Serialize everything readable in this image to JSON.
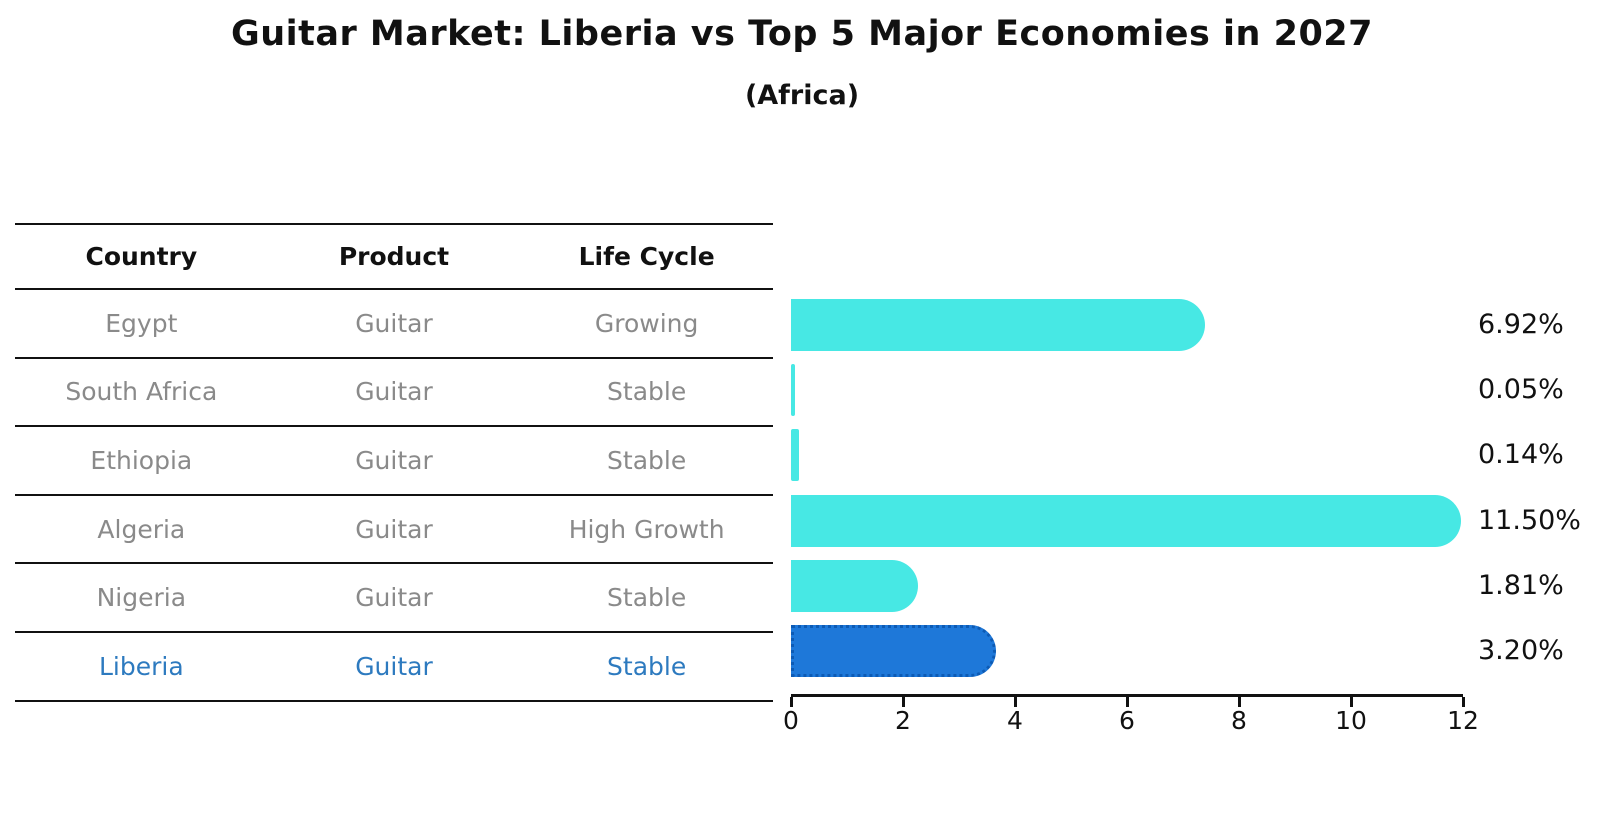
{
  "title": "Guitar Market: Liberia vs Top 5 Major Economies in 2027",
  "subtitle": "(Africa)",
  "table": {
    "headers": [
      "Country",
      "Product",
      "Life Cycle"
    ],
    "rows": [
      {
        "country": "Egypt",
        "product": "Guitar",
        "life_cycle": "Growing",
        "highlight": false
      },
      {
        "country": "South Africa",
        "product": "Guitar",
        "life_cycle": "Stable",
        "highlight": false
      },
      {
        "country": "Ethiopia",
        "product": "Guitar",
        "life_cycle": "Stable",
        "highlight": false
      },
      {
        "country": "Algeria",
        "product": "Guitar",
        "life_cycle": "High Growth",
        "highlight": false
      },
      {
        "country": "Nigeria",
        "product": "Guitar",
        "life_cycle": "Stable",
        "highlight": false
      },
      {
        "country": "Liberia",
        "product": "Guitar",
        "life_cycle": "Stable",
        "highlight": true
      }
    ]
  },
  "chart_data": {
    "type": "bar",
    "orientation": "horizontal",
    "title": "Guitar Market: Liberia vs Top 5 Major Economies in 2027",
    "subtitle": "(Africa)",
    "categories": [
      "Egypt",
      "South Africa",
      "Ethiopia",
      "Algeria",
      "Nigeria",
      "Liberia"
    ],
    "values": [
      6.92,
      0.05,
      0.14,
      11.5,
      1.81,
      3.2
    ],
    "value_labels": [
      "6.92%",
      "0.05%",
      "0.14%",
      "11.50%",
      "1.81%",
      "3.20%"
    ],
    "highlight_index": 5,
    "x_ticks": [
      0,
      2,
      4,
      6,
      8,
      10,
      12
    ],
    "xlim": [
      0,
      12
    ],
    "grid": false,
    "legend": false,
    "colors": {
      "bar_default": "#47e8e4",
      "bar_highlight": "#1e78d9",
      "highlight_text": "#2d7abf",
      "row_text": "#8a8a8a",
      "axis": "#111111"
    }
  }
}
